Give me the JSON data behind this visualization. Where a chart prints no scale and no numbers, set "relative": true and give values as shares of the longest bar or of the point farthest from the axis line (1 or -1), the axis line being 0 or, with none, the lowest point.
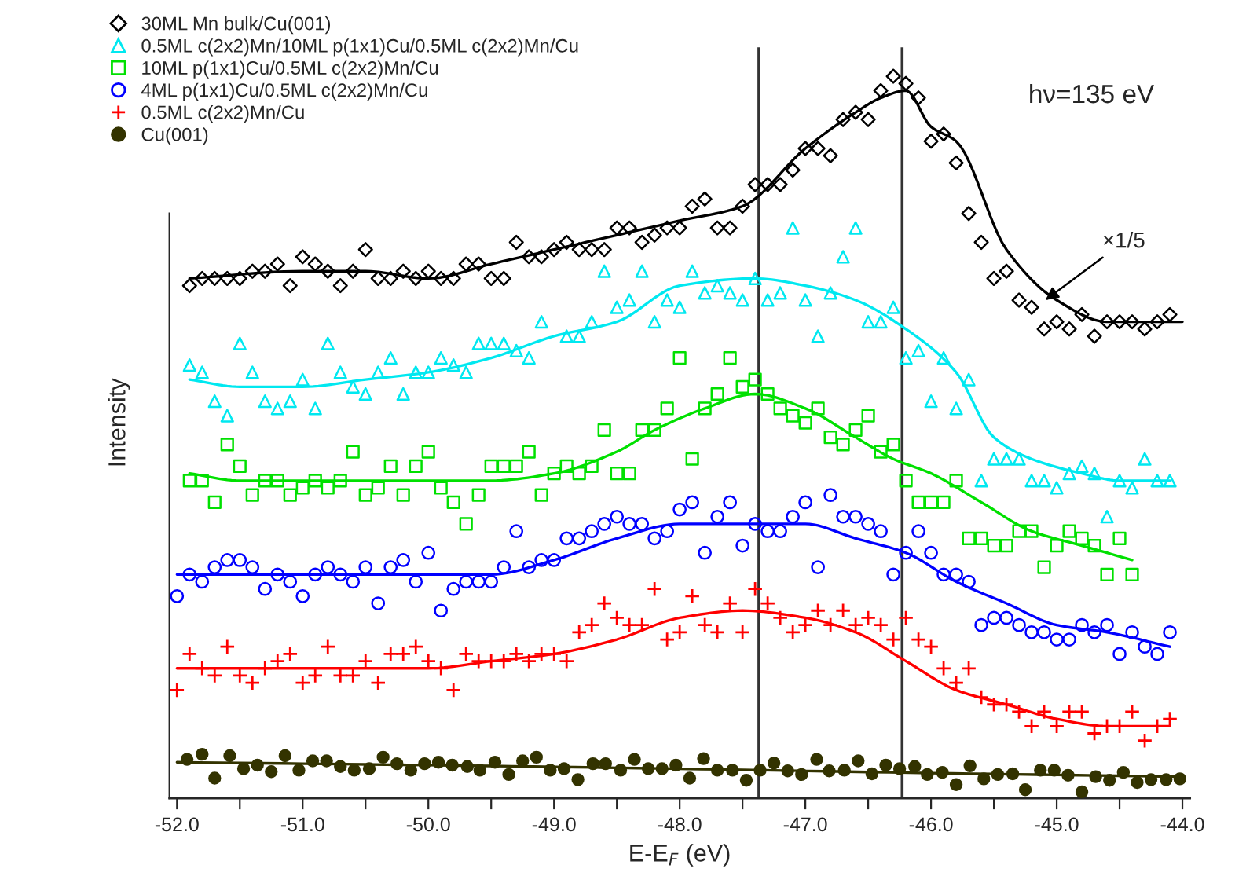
{
  "chart_data": {
    "type": "scatter",
    "relative": true,
    "xlabel": "E-E$_{F}$ (eV)",
    "ylabel": "Intensity",
    "xlim": [
      -52.06,
      -43.94
    ],
    "xticks": [
      {
        "value": -52,
        "label": "-52.0"
      },
      {
        "value": -51.5,
        "label": null
      },
      {
        "value": -51,
        "label": "-51.0"
      },
      {
        "value": -50.5,
        "label": null
      },
      {
        "value": -50,
        "label": "-50.0"
      },
      {
        "value": -49.5,
        "label": null
      },
      {
        "value": -49,
        "label": "-49.0"
      },
      {
        "value": -48.5,
        "label": null
      },
      {
        "value": -48,
        "label": "-48.0"
      },
      {
        "value": -47.5,
        "label": null
      },
      {
        "value": -47,
        "label": "-47.0"
      },
      {
        "value": -46.5,
        "label": null
      },
      {
        "value": -46,
        "label": "-46.0"
      },
      {
        "value": -45.5,
        "label": null
      },
      {
        "value": -45,
        "label": "-45.0"
      },
      {
        "value": -44.5,
        "label": null
      },
      {
        "value": -44,
        "label": "-44.0"
      }
    ],
    "tick_labels": "x",
    "grid": false,
    "legend": "top left",
    "annotations": [
      "hν=135 eV",
      {
        "text": "×1/5",
        "x": -45.09,
        "y": 0.69
      }
    ],
    "ref_lines": [
      {
        "axis": "x",
        "value": -47.37,
        "color": "#333333"
      },
      {
        "axis": "x",
        "value": -46.23,
        "color": "#333333"
      }
    ],
    "series": [
      {
        "name": "30ML Mn bulk/Cu(001)",
        "color": "#000000",
        "marker": "diamond",
        "x": [
          -51.9,
          -51.8,
          -51.7,
          -51.6,
          -51.5,
          -51.4,
          -51.3,
          -51.2,
          -51.1,
          -51.0,
          -50.9,
          -50.8,
          -50.7,
          -50.6,
          -50.5,
          -50.4,
          -50.3,
          -50.2,
          -50.1,
          -50.0,
          -49.9,
          -49.8,
          -49.7,
          -49.6,
          -49.5,
          -49.4,
          -49.3,
          -49.2,
          -49.1,
          -49.0,
          -48.9,
          -48.8,
          -48.7,
          -48.6,
          -48.5,
          -48.4,
          -48.3,
          -48.2,
          -48.1,
          -48.0,
          -47.9,
          -47.8,
          -47.7,
          -47.6,
          -47.5,
          -47.4,
          -47.3,
          -47.2,
          -47.1,
          -47.0,
          -46.9,
          -46.8,
          -46.7,
          -46.6,
          -46.5,
          -46.4,
          -46.3,
          -46.2,
          -46.1,
          -46.0,
          -45.9,
          -45.8,
          -45.7,
          -45.6,
          -45.5,
          -45.4,
          -45.3,
          -45.2,
          -45.1,
          -45.0,
          -44.9,
          -44.8,
          -44.7,
          -44.6,
          -44.5,
          -44.4,
          -44.3,
          -44.2,
          -44.1
        ],
        "values": [
          0.71,
          0.72,
          0.72,
          0.72,
          0.72,
          0.73,
          0.73,
          0.74,
          0.71,
          0.75,
          0.74,
          0.73,
          0.71,
          0.73,
          0.76,
          0.72,
          0.72,
          0.73,
          0.72,
          0.73,
          0.72,
          0.72,
          0.74,
          0.74,
          0.72,
          0.72,
          0.77,
          0.75,
          0.75,
          0.76,
          0.77,
          0.76,
          0.76,
          0.76,
          0.79,
          0.79,
          0.77,
          0.78,
          0.79,
          0.79,
          0.82,
          0.83,
          0.79,
          0.79,
          0.82,
          0.85,
          0.85,
          0.85,
          0.87,
          0.9,
          0.9,
          0.89,
          0.94,
          0.95,
          0.94,
          0.98,
          1.0,
          0.99,
          0.97,
          0.91,
          0.92,
          0.88,
          0.81,
          0.77,
          0.72,
          0.73,
          0.69,
          0.68,
          0.65,
          0.66,
          0.65,
          0.67,
          0.64,
          0.66,
          0.66,
          0.66,
          0.65,
          0.66,
          0.67
        ]
      },
      {
        "name": "0.5ML c(2x2)Mn/10ML p(1x1)Cu/0.5ML c(2x2)Mn/Cu",
        "color": "#00e8f0",
        "marker": "triangle",
        "x": [
          -51.9,
          -51.8,
          -51.7,
          -51.6,
          -51.5,
          -51.4,
          -51.3,
          -51.2,
          -51.1,
          -51.0,
          -50.9,
          -50.8,
          -50.7,
          -50.6,
          -50.5,
          -50.4,
          -50.3,
          -50.2,
          -50.1,
          -50.0,
          -49.9,
          -49.8,
          -49.7,
          -49.6,
          -49.5,
          -49.4,
          -49.3,
          -49.2,
          -49.1,
          -49.0,
          -48.9,
          -48.8,
          -48.7,
          -48.6,
          -48.5,
          -48.4,
          -48.3,
          -48.2,
          -48.1,
          -48.0,
          -47.9,
          -47.8,
          -47.7,
          -47.6,
          -47.5,
          -47.4,
          -47.3,
          -47.2,
          -47.1,
          -47.0,
          -46.9,
          -46.8,
          -46.7,
          -46.6,
          -46.5,
          -46.4,
          -46.3,
          -46.2,
          -46.1,
          -46.0,
          -45.9,
          -45.8,
          -45.7,
          -45.6,
          -45.5,
          -45.4,
          -45.3,
          -45.2,
          -45.1,
          -45.0,
          -44.9,
          -44.8,
          -44.7,
          -44.6,
          -44.5,
          -44.4,
          -44.3,
          -44.2,
          -44.1
        ],
        "values": [
          0.6,
          0.59,
          0.55,
          0.53,
          0.63,
          0.59,
          0.55,
          0.54,
          0.55,
          0.58,
          0.54,
          0.63,
          0.59,
          0.57,
          0.56,
          0.59,
          0.61,
          0.56,
          0.59,
          0.59,
          0.61,
          0.6,
          0.59,
          0.63,
          0.63,
          0.63,
          0.62,
          0.61,
          0.66,
          null,
          0.64,
          0.64,
          0.66,
          0.73,
          0.68,
          0.69,
          0.73,
          0.66,
          0.69,
          0.68,
          0.73,
          0.7,
          0.71,
          0.7,
          0.69,
          0.72,
          0.69,
          0.7,
          0.79,
          0.69,
          0.64,
          0.7,
          0.75,
          0.79,
          0.66,
          0.66,
          0.68,
          0.61,
          0.62,
          0.55,
          0.61,
          0.54,
          0.58,
          0.44,
          0.47,
          0.47,
          0.47,
          0.44,
          0.44,
          0.43,
          0.45,
          0.46,
          0.45,
          0.39,
          0.44,
          0.43,
          0.47,
          0.44,
          0.44
        ]
      },
      {
        "name": "10ML p(1x1)Cu/0.5ML c(2x2)Mn/Cu",
        "color": "#00e000",
        "marker": "square",
        "x": [
          -51.9,
          -51.8,
          -51.7,
          -51.6,
          -51.5,
          -51.4,
          -51.3,
          -51.2,
          -51.1,
          -51.0,
          -50.9,
          -50.8,
          -50.7,
          -50.6,
          -50.5,
          -50.4,
          -50.3,
          -50.2,
          -50.1,
          -50.0,
          -49.9,
          -49.8,
          -49.7,
          -49.6,
          -49.5,
          -49.4,
          -49.3,
          -49.2,
          -49.1,
          -49.0,
          -48.9,
          -48.8,
          -48.7,
          -48.6,
          -48.5,
          -48.4,
          -48.3,
          -48.2,
          -48.1,
          -48.0,
          -47.9,
          -47.8,
          -47.7,
          -47.6,
          -47.5,
          -47.4,
          -47.3,
          -47.2,
          -47.1,
          -47.0,
          -46.9,
          -46.8,
          -46.7,
          -46.6,
          -46.5,
          -46.4,
          -46.3,
          -46.2,
          -46.1,
          -46.0,
          -45.9,
          -45.8,
          -45.7,
          -45.6,
          -45.5,
          -45.4,
          -45.3,
          -45.2,
          -45.1,
          -45.0,
          -44.9,
          -44.8,
          -44.7,
          -44.6,
          -44.5,
          -44.4
        ],
        "values": [
          0.44,
          0.44,
          0.41,
          0.49,
          0.46,
          0.42,
          0.44,
          0.44,
          0.42,
          0.43,
          0.44,
          0.43,
          0.44,
          0.48,
          0.42,
          0.43,
          0.46,
          0.42,
          0.46,
          0.48,
          0.43,
          0.41,
          0.38,
          0.42,
          0.46,
          0.46,
          0.46,
          0.48,
          0.42,
          0.45,
          0.46,
          0.45,
          0.46,
          0.51,
          0.45,
          0.45,
          0.51,
          0.51,
          0.54,
          0.61,
          0.47,
          0.54,
          0.56,
          0.61,
          0.57,
          0.58,
          0.56,
          0.54,
          0.53,
          0.52,
          0.54,
          0.5,
          0.49,
          0.51,
          0.53,
          0.48,
          0.49,
          0.44,
          0.41,
          0.41,
          0.41,
          0.44,
          0.36,
          0.36,
          0.35,
          0.35,
          0.37,
          0.37,
          0.32,
          0.35,
          0.37,
          0.36,
          0.35,
          0.31,
          0.36,
          0.31
        ]
      },
      {
        "name": "4ML p(1x1)Cu/0.5ML c(2x2)Mn/Cu",
        "color": "#0000ff",
        "marker": "circle",
        "x": [
          -52.0,
          -51.9,
          -51.8,
          -51.7,
          -51.6,
          -51.5,
          -51.4,
          -51.3,
          -51.2,
          -51.1,
          -51.0,
          -50.9,
          -50.8,
          -50.7,
          -50.6,
          -50.5,
          -50.4,
          -50.3,
          -50.2,
          -50.1,
          -50.0,
          -49.9,
          -49.8,
          -49.7,
          -49.6,
          -49.5,
          -49.4,
          -49.3,
          -49.2,
          -49.1,
          -49.0,
          -48.9,
          -48.8,
          -48.7,
          -48.6,
          -48.5,
          -48.4,
          -48.3,
          -48.2,
          -48.1,
          -48.0,
          -47.9,
          -47.8,
          -47.7,
          -47.6,
          -47.5,
          -47.4,
          -47.3,
          -47.2,
          -47.1,
          -47.0,
          -46.9,
          -46.8,
          -46.7,
          -46.6,
          -46.5,
          -46.4,
          -46.3,
          -46.2,
          -46.1,
          -46.0,
          -45.9,
          -45.8,
          -45.7,
          -45.6,
          -45.5,
          -45.4,
          -45.3,
          -45.2,
          -45.1,
          -45.0,
          -44.9,
          -44.8,
          -44.7,
          -44.6,
          -44.5,
          -44.4,
          -44.3,
          -44.2,
          -44.1
        ],
        "values": [
          0.28,
          0.31,
          0.3,
          0.32,
          0.33,
          0.33,
          0.32,
          0.29,
          0.31,
          0.3,
          0.28,
          0.31,
          0.32,
          0.31,
          0.3,
          0.32,
          0.27,
          0.32,
          0.33,
          0.3,
          0.34,
          0.26,
          0.29,
          0.3,
          0.3,
          0.3,
          0.32,
          0.37,
          0.32,
          0.33,
          0.33,
          0.36,
          0.36,
          0.37,
          0.38,
          0.39,
          0.38,
          0.38,
          0.36,
          0.37,
          0.4,
          0.41,
          0.34,
          0.39,
          0.41,
          0.35,
          0.38,
          0.37,
          0.37,
          0.39,
          0.41,
          0.32,
          0.42,
          0.39,
          0.39,
          0.38,
          0.37,
          0.31,
          0.34,
          0.37,
          0.34,
          0.31,
          0.31,
          0.3,
          0.24,
          0.25,
          0.25,
          0.24,
          0.23,
          0.23,
          0.22,
          0.22,
          0.24,
          0.23,
          0.24,
          0.2,
          0.23,
          0.21,
          0.2,
          0.23
        ]
      },
      {
        "name": "0.5ML c(2x2)Mn/Cu",
        "color": "#ff0000",
        "marker": "cross",
        "x": [
          -52.0,
          -51.9,
          -51.8,
          -51.7,
          -51.6,
          -51.5,
          -51.4,
          -51.3,
          -51.2,
          -51.1,
          -51.0,
          -50.9,
          -50.8,
          -50.7,
          -50.6,
          -50.5,
          -50.4,
          -50.3,
          -50.2,
          -50.1,
          -50.0,
          -49.9,
          -49.8,
          -49.7,
          -49.6,
          -49.5,
          -49.4,
          -49.3,
          -49.2,
          -49.1,
          -49.0,
          -48.9,
          -48.8,
          -48.7,
          -48.6,
          -48.5,
          -48.4,
          -48.3,
          -48.2,
          -48.1,
          -48.0,
          -47.9,
          -47.8,
          -47.7,
          -47.6,
          -47.5,
          -47.4,
          -47.3,
          -47.2,
          -47.1,
          -47.0,
          -46.9,
          -46.8,
          -46.7,
          -46.6,
          -46.5,
          -46.4,
          -46.3,
          -46.2,
          -46.1,
          -46.0,
          -45.9,
          -45.8,
          -45.7,
          -45.6,
          -45.5,
          -45.4,
          -45.3,
          -45.2,
          -45.1,
          -45.0,
          -44.9,
          -44.8,
          -44.7,
          -44.6,
          -44.5,
          -44.4,
          -44.3,
          -44.2,
          -44.1
        ],
        "values": [
          0.15,
          0.2,
          0.18,
          0.17,
          0.21,
          0.17,
          0.16,
          0.18,
          0.19,
          0.2,
          0.16,
          0.17,
          0.21,
          0.17,
          0.17,
          0.19,
          0.16,
          0.2,
          0.2,
          0.21,
          0.19,
          0.18,
          0.15,
          0.2,
          0.19,
          0.19,
          0.19,
          0.2,
          0.19,
          0.2,
          0.2,
          0.19,
          0.23,
          0.24,
          0.27,
          0.25,
          0.24,
          0.24,
          0.29,
          0.22,
          0.23,
          0.28,
          0.24,
          0.23,
          0.27,
          0.23,
          0.29,
          0.27,
          0.25,
          0.23,
          0.24,
          0.26,
          0.24,
          0.26,
          0.24,
          0.25,
          0.24,
          0.22,
          0.25,
          0.22,
          0.21,
          0.18,
          0.16,
          0.18,
          0.14,
          0.13,
          0.13,
          0.12,
          0.1,
          0.12,
          0.1,
          0.12,
          0.12,
          0.09,
          0.1,
          0.1,
          0.12,
          0.08,
          0.1,
          0.11
        ]
      },
      {
        "name": "Cu(001)",
        "color": "#333300",
        "marker": "circle",
        "x": [
          -51.92,
          -51.8,
          -51.7,
          -51.58,
          -51.47,
          -51.36,
          -51.25,
          -51.14,
          -51.03,
          -50.92,
          -50.81,
          -50.7,
          -50.59,
          -50.47,
          -50.36,
          -50.25,
          -50.14,
          -50.03,
          -49.92,
          -49.81,
          -49.69,
          -49.59,
          -49.47,
          -49.36,
          -49.25,
          -49.14,
          -49.03,
          -48.92,
          -48.81,
          -48.69,
          -48.59,
          -48.47,
          -48.36,
          -48.25,
          -48.14,
          -48.03,
          -47.92,
          -47.81,
          -47.7,
          -47.58,
          -47.47,
          -47.36,
          -47.25,
          -47.14,
          -47.03,
          -46.91,
          -46.81,
          -46.69,
          -46.58,
          -46.47,
          -46.36,
          -46.25,
          -46.13,
          -46.03,
          -45.91,
          -45.8,
          -45.69,
          -45.58,
          -45.47,
          -45.35,
          -45.25,
          -45.13,
          -45.02,
          -44.91,
          -44.8,
          -44.69,
          -44.58,
          -44.47,
          -44.36,
          -44.25,
          -44.13,
          -44.02
        ],
        "values": [
          0.054,
          0.061,
          0.028,
          0.059,
          0.041,
          0.046,
          0.037,
          0.059,
          0.039,
          0.052,
          0.052,
          0.044,
          0.039,
          0.041,
          0.057,
          0.048,
          0.039,
          0.048,
          0.05,
          0.046,
          0.044,
          0.039,
          0.05,
          0.033,
          0.052,
          0.057,
          0.039,
          0.041,
          0.026,
          0.048,
          0.048,
          0.039,
          0.054,
          0.041,
          0.041,
          0.046,
          0.028,
          0.055,
          0.039,
          0.039,
          0.025,
          0.039,
          0.049,
          0.038,
          0.033,
          0.054,
          0.038,
          0.039,
          0.052,
          0.034,
          0.046,
          0.041,
          0.044,
          0.033,
          0.036,
          0.019,
          0.045,
          0.027,
          0.033,
          0.034,
          0.012,
          0.039,
          0.039,
          0.032,
          0.009,
          0.03,
          0.025,
          0.036,
          0.022,
          0.026,
          0.026,
          0.027
        ]
      },
      {
        "type": "line",
        "color": "#000000",
        "x": [
          -51.9,
          -51.0,
          -50.5,
          -50.0,
          -49.5,
          -49.0,
          -48.5,
          -48.0,
          -47.5,
          -47.0,
          -46.6,
          -46.4,
          -46.2,
          -46.0,
          -45.8,
          -45.4,
          -45.0,
          -44.6,
          -44.0
        ],
        "values": [
          0.72,
          0.73,
          0.73,
          0.72,
          0.74,
          0.76,
          0.78,
          0.8,
          0.82,
          0.9,
          0.95,
          0.97,
          0.98,
          0.93,
          0.91,
          0.76,
          0.69,
          0.66,
          0.66
        ]
      },
      {
        "type": "line",
        "color": "#00e8f0",
        "x": [
          -51.9,
          -51.5,
          -51.0,
          -50.5,
          -50.0,
          -49.5,
          -49.0,
          -48.5,
          -48.0,
          -47.4,
          -47.0,
          -46.6,
          -46.2,
          -45.8,
          -45.5,
          -45.2,
          -44.8,
          -44.5,
          -44.1
        ],
        "values": [
          0.58,
          0.57,
          0.57,
          0.58,
          0.59,
          0.61,
          0.64,
          0.66,
          0.71,
          0.72,
          0.71,
          0.69,
          0.65,
          0.59,
          0.5,
          0.47,
          0.45,
          0.44,
          0.44
        ]
      },
      {
        "type": "line",
        "color": "#00e000",
        "x": [
          -51.9,
          -51.5,
          -51.0,
          -50.5,
          -50.0,
          -49.5,
          -49.0,
          -48.5,
          -48.2,
          -47.8,
          -47.4,
          -47.0,
          -46.6,
          -46.3,
          -46.0,
          -45.6,
          -45.2,
          -44.8,
          -44.4
        ],
        "values": [
          0.45,
          0.44,
          0.44,
          0.44,
          0.44,
          0.44,
          0.45,
          0.48,
          0.51,
          0.54,
          0.56,
          0.54,
          0.5,
          0.47,
          0.45,
          0.41,
          0.37,
          0.35,
          0.33
        ]
      },
      {
        "type": "line",
        "color": "#0000ff",
        "x": [
          -52.0,
          -51.5,
          -51.0,
          -50.5,
          -50.0,
          -49.5,
          -49.0,
          -48.5,
          -48.0,
          -47.5,
          -47.0,
          -46.6,
          -46.2,
          -45.8,
          -45.4,
          -45.0,
          -44.6,
          -44.1
        ],
        "values": [
          0.31,
          0.31,
          0.31,
          0.31,
          0.31,
          0.31,
          0.33,
          0.36,
          0.38,
          0.38,
          0.38,
          0.36,
          0.34,
          0.3,
          0.27,
          0.24,
          0.23,
          0.21
        ]
      },
      {
        "type": "line",
        "color": "#ff0000",
        "x": [
          -52.0,
          -51.5,
          -51.0,
          -50.5,
          -50.0,
          -49.5,
          -49.0,
          -48.5,
          -48.0,
          -47.5,
          -47.0,
          -46.6,
          -46.2,
          -45.8,
          -45.4,
          -45.0,
          -44.6,
          -44.1
        ],
        "values": [
          0.18,
          0.18,
          0.18,
          0.18,
          0.18,
          0.19,
          0.2,
          0.22,
          0.25,
          0.26,
          0.25,
          0.23,
          0.19,
          0.15,
          0.13,
          0.11,
          0.1,
          0.1
        ]
      },
      {
        "type": "line",
        "color": "#333300",
        "x": [
          -52.0,
          -50.0,
          -48.0,
          -46.0,
          -44.0
        ],
        "values": [
          0.05,
          0.046,
          0.041,
          0.035,
          0.03
        ]
      }
    ]
  }
}
